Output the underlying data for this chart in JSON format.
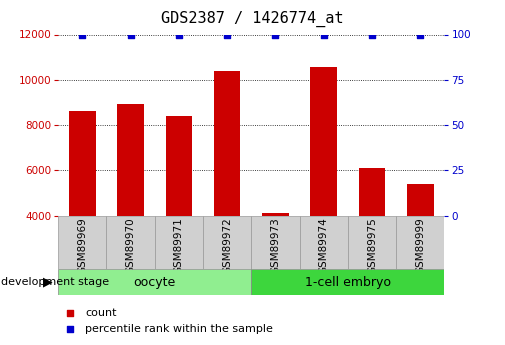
{
  "title": "GDS2387 / 1426774_at",
  "samples": [
    "GSM89969",
    "GSM89970",
    "GSM89971",
    "GSM89972",
    "GSM89973",
    "GSM89974",
    "GSM89975",
    "GSM89999"
  ],
  "counts": [
    8600,
    8950,
    8400,
    10400,
    4100,
    10550,
    6100,
    5400
  ],
  "percentile_ranks": [
    99,
    99,
    99,
    99,
    99,
    99,
    99,
    99
  ],
  "groups": [
    {
      "label": "oocyte",
      "indices": [
        0,
        1,
        2,
        3
      ],
      "color": "#90EE90"
    },
    {
      "label": "1-cell embryo",
      "indices": [
        4,
        5,
        6,
        7
      ],
      "color": "#3DD63D"
    }
  ],
  "bar_color": "#CC0000",
  "dot_color": "#0000CC",
  "ylim_left": [
    4000,
    12000
  ],
  "ylim_right": [
    0,
    100
  ],
  "yticks_left": [
    4000,
    6000,
    8000,
    10000,
    12000
  ],
  "yticks_right": [
    0,
    25,
    50,
    75,
    100
  ],
  "grid_color": "#000000",
  "bar_width": 0.55,
  "background_color": "#ffffff",
  "legend_items": [
    {
      "label": "count",
      "color": "#CC0000",
      "marker": "s"
    },
    {
      "label": "percentile rank within the sample",
      "color": "#0000CC",
      "marker": "s"
    }
  ],
  "dev_stage_label": "development stage",
  "tick_label_box_color": "#d0d0d0",
  "tick_label_box_edge": "#999999",
  "title_fontsize": 11,
  "tick_fontsize": 7.5,
  "label_fontsize": 8,
  "group_label_fontsize": 9,
  "dev_stage_fontsize": 8
}
